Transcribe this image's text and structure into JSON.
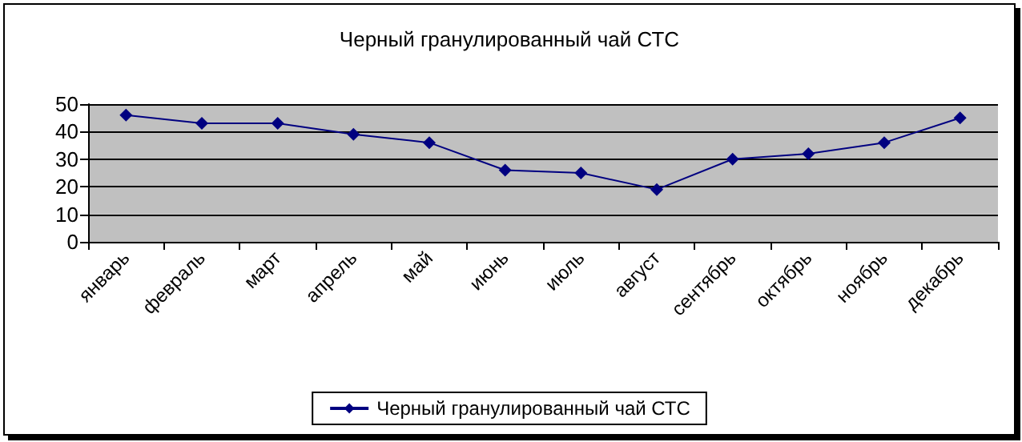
{
  "chart_data": {
    "type": "line",
    "title": "Черный гранулированный чай СТС",
    "categories": [
      "январь",
      "февраль",
      "март",
      "апрель",
      "май",
      "июнь",
      "июль",
      "август",
      "сентябрь",
      "октябрь",
      "ноябрь",
      "декабрь"
    ],
    "series": [
      {
        "name": "Черный гранулированный чай СТС",
        "color": "#000080",
        "values": [
          46,
          43,
          43,
          39,
          36,
          26,
          25,
          19,
          30,
          32,
          36,
          45
        ]
      }
    ],
    "ylim": [
      0,
      50
    ],
    "yticks": [
      0,
      10,
      20,
      30,
      40,
      50
    ],
    "grid": "y",
    "legend": "bottom",
    "marker": "diamond",
    "line_style": "solid"
  }
}
